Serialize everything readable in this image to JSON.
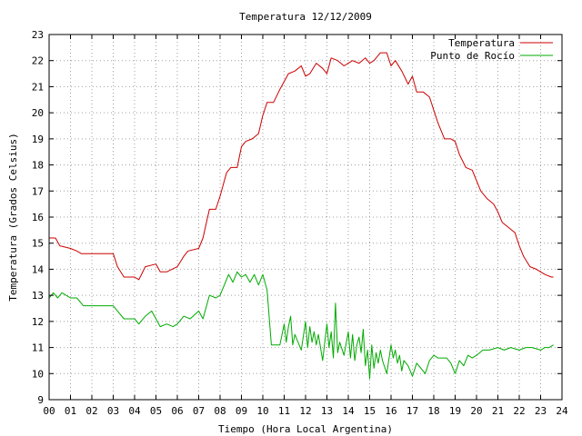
{
  "chart_data": {
    "type": "line",
    "title": "Temperatura 12/12/2009",
    "xlabel": "Tiempo (Hora Local Argentina)",
    "ylabel": "Temperatura (Grados Celsius)",
    "xlim": [
      0,
      24
    ],
    "ylim": [
      9,
      23
    ],
    "x_ticks": [
      0,
      1,
      2,
      3,
      4,
      5,
      6,
      7,
      8,
      9,
      10,
      11,
      12,
      13,
      14,
      15,
      16,
      17,
      18,
      19,
      20,
      21,
      22,
      23,
      24
    ],
    "x_tick_labels": [
      "00",
      "01",
      "02",
      "03",
      "04",
      "05",
      "06",
      "07",
      "08",
      "09",
      "10",
      "11",
      "12",
      "13",
      "14",
      "15",
      "16",
      "17",
      "18",
      "19",
      "20",
      "21",
      "22",
      "23",
      "24"
    ],
    "y_ticks": [
      9,
      10,
      11,
      12,
      13,
      14,
      15,
      16,
      17,
      18,
      19,
      20,
      21,
      22,
      23
    ],
    "y_tick_labels": [
      "9",
      "10",
      "11",
      "12",
      "13",
      "14",
      "15",
      "16",
      "17",
      "18",
      "19",
      "20",
      "21",
      "22",
      "23"
    ],
    "grid": true,
    "legend_position": "top-right",
    "series": [
      {
        "name": "Temperatura",
        "color": "#cc0000",
        "x": [
          0,
          0.3,
          0.5,
          1,
          1.3,
          1.5,
          2,
          2.5,
          3,
          3.2,
          3.5,
          4,
          4.2,
          4.5,
          5,
          5.2,
          5.5,
          6,
          6.3,
          6.5,
          7,
          7.2,
          7.5,
          7.8,
          8,
          8.3,
          8.5,
          8.8,
          9,
          9.2,
          9.5,
          9.8,
          10,
          10.2,
          10.5,
          10.8,
          11,
          11.2,
          11.5,
          11.8,
          12,
          12.2,
          12.5,
          12.8,
          13,
          13.2,
          13.5,
          13.8,
          14,
          14.2,
          14.5,
          14.8,
          15,
          15.2,
          15.5,
          15.8,
          16,
          16.2,
          16.5,
          16.8,
          17,
          17.2,
          17.5,
          17.8,
          18,
          18.2,
          18.5,
          18.8,
          19,
          19.2,
          19.5,
          19.8,
          20,
          20.2,
          20.5,
          20.8,
          21,
          21.2,
          21.5,
          21.8,
          22,
          22.2,
          22.5,
          22.8,
          23,
          23.2,
          23.5,
          23.6
        ],
        "y": [
          15.2,
          15.2,
          14.9,
          14.8,
          14.7,
          14.6,
          14.6,
          14.6,
          14.6,
          14.1,
          13.7,
          13.7,
          13.6,
          14.1,
          14.2,
          13.9,
          13.9,
          14.1,
          14.5,
          14.7,
          14.8,
          15.2,
          16.3,
          16.3,
          16.8,
          17.7,
          17.9,
          17.9,
          18.7,
          18.9,
          19.0,
          19.2,
          19.9,
          20.4,
          20.4,
          20.9,
          21.2,
          21.5,
          21.6,
          21.8,
          21.4,
          21.5,
          21.9,
          21.7,
          21.5,
          22.1,
          22.0,
          21.8,
          21.9,
          22.0,
          21.9,
          22.1,
          21.9,
          22.0,
          22.3,
          22.3,
          21.8,
          22.0,
          21.6,
          21.1,
          21.4,
          20.8,
          20.8,
          20.6,
          20.1,
          19.6,
          19.0,
          19.0,
          18.9,
          18.4,
          17.9,
          17.8,
          17.4,
          17.0,
          16.7,
          16.5,
          16.2,
          15.8,
          15.6,
          15.4,
          14.9,
          14.5,
          14.1,
          14.0,
          13.9,
          13.8,
          13.7,
          13.7
        ]
      },
      {
        "name": "Punto de Rocío",
        "color": "#00aa00",
        "x": [
          0,
          0.2,
          0.4,
          0.6,
          1,
          1.3,
          1.6,
          2,
          2.5,
          3,
          3.2,
          3.5,
          4,
          4.2,
          4.5,
          4.8,
          5,
          5.2,
          5.5,
          5.8,
          6,
          6.3,
          6.6,
          7,
          7.2,
          7.5,
          7.8,
          8,
          8.2,
          8.4,
          8.6,
          8.8,
          9,
          9.2,
          9.4,
          9.6,
          9.8,
          10,
          10.2,
          10.4,
          10.6,
          10.8,
          11,
          11.1,
          11.2,
          11.3,
          11.4,
          11.5,
          11.6,
          11.8,
          12,
          12.1,
          12.2,
          12.3,
          12.4,
          12.5,
          12.6,
          12.8,
          13,
          13.1,
          13.2,
          13.3,
          13.4,
          13.5,
          13.6,
          13.8,
          14,
          14.1,
          14.2,
          14.3,
          14.4,
          14.5,
          14.6,
          14.7,
          14.8,
          14.9,
          15,
          15.1,
          15.2,
          15.3,
          15.4,
          15.5,
          15.6,
          15.8,
          16,
          16.1,
          16.2,
          16.3,
          16.4,
          16.5,
          16.6,
          16.8,
          17,
          17.2,
          17.4,
          17.6,
          17.8,
          18,
          18.2,
          18.4,
          18.6,
          18.8,
          19,
          19.2,
          19.4,
          19.6,
          19.8,
          20,
          20.3,
          20.6,
          21,
          21.3,
          21.6,
          22,
          22.3,
          22.6,
          23,
          23.2,
          23.4,
          23.6
        ],
        "y": [
          12.9,
          13.1,
          12.9,
          13.1,
          12.9,
          12.9,
          12.6,
          12.6,
          12.6,
          12.6,
          12.4,
          12.1,
          12.1,
          11.9,
          12.2,
          12.4,
          12.1,
          11.8,
          11.9,
          11.8,
          11.9,
          12.2,
          12.1,
          12.4,
          12.1,
          13.0,
          12.9,
          13.0,
          13.4,
          13.8,
          13.5,
          13.9,
          13.7,
          13.8,
          13.5,
          13.8,
          13.4,
          13.8,
          13.2,
          11.1,
          11.1,
          11.1,
          11.9,
          11.2,
          11.8,
          12.2,
          11.1,
          11.5,
          11.3,
          10.9,
          12.0,
          11.0,
          11.8,
          11.2,
          11.6,
          11.1,
          11.5,
          10.5,
          11.9,
          11.0,
          11.6,
          10.6,
          12.7,
          10.8,
          11.2,
          10.7,
          11.6,
          10.6,
          11.5,
          10.5,
          11.1,
          11.4,
          10.8,
          11.7,
          10.3,
          10.9,
          9.8,
          11.1,
          10.2,
          10.8,
          10.4,
          10.9,
          10.5,
          10.0,
          11.1,
          10.6,
          10.9,
          10.4,
          10.7,
          10.1,
          10.5,
          10.3,
          9.9,
          10.4,
          10.2,
          10.0,
          10.5,
          10.7,
          10.6,
          10.6,
          10.6,
          10.4,
          10.0,
          10.5,
          10.3,
          10.7,
          10.6,
          10.7,
          10.9,
          10.9,
          11.0,
          10.9,
          11.0,
          10.9,
          11.0,
          11.0,
          10.9,
          11.0,
          11.0,
          11.1
        ]
      }
    ]
  }
}
